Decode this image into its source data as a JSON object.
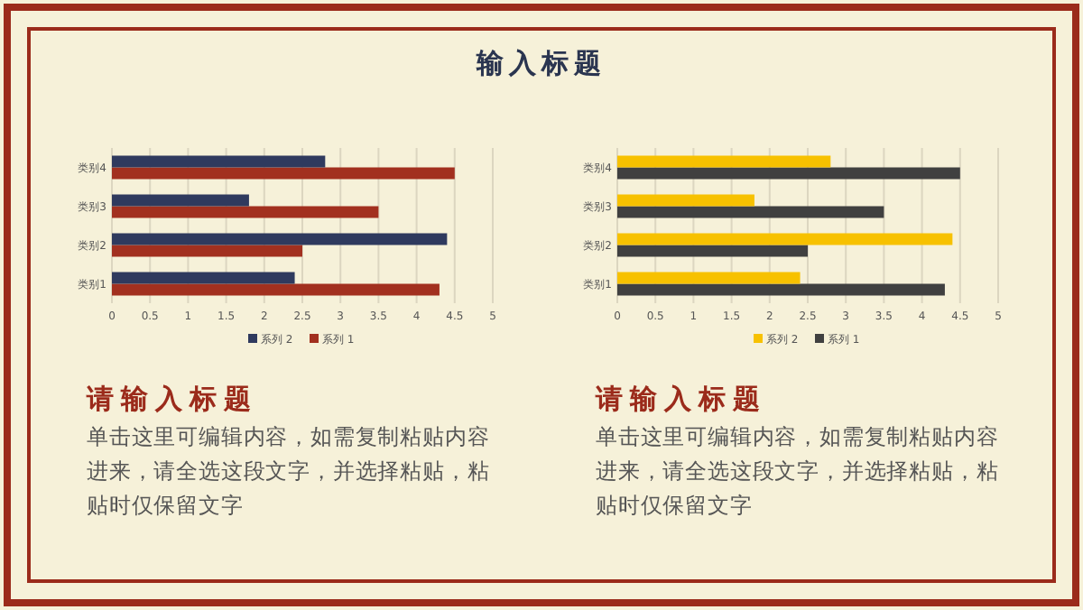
{
  "chart_data": [
    {
      "type": "other",
      "title": "输入标题"
    },
    {
      "type": "bar",
      "orientation": "horizontal",
      "categories": [
        "类别4",
        "类别3",
        "类别2",
        "类别1"
      ],
      "series": [
        {
          "name": "系列 1",
          "color": "#a2301f",
          "values": [
            4.5,
            3.5,
            2.5,
            4.3
          ]
        },
        {
          "name": "系列 2",
          "color": "#2f3a5e",
          "values": [
            2.8,
            1.8,
            4.4,
            2.4
          ]
        }
      ],
      "xlim": [
        0,
        5
      ],
      "xticks": [
        0,
        0.5,
        1,
        1.5,
        2,
        2.5,
        3,
        3.5,
        4,
        4.5,
        5
      ],
      "grid": "x",
      "legend": "bottom",
      "annotations": [
        "请输入标题",
        "单击这里可编辑内容，如需复制粘贴内容进来，请全选这段文字，并选择粘贴，粘贴时仅保留文字"
      ]
    },
    {
      "type": "bar",
      "orientation": "horizontal",
      "categories": [
        "类别4",
        "类别3",
        "类别2",
        "类别1"
      ],
      "series": [
        {
          "name": "系列 1",
          "color": "#404040",
          "values": [
            4.5,
            3.5,
            2.5,
            4.3
          ]
        },
        {
          "name": "系列 2",
          "color": "#f7c100",
          "values": [
            2.8,
            1.8,
            4.4,
            2.4
          ]
        }
      ],
      "xlim": [
        0,
        5
      ],
      "xticks": [
        0,
        0.5,
        1,
        1.5,
        2,
        2.5,
        3,
        3.5,
        4,
        4.5,
        5
      ],
      "grid": "x",
      "legend": "bottom",
      "annotations": [
        "请输入标题",
        "单击这里可编辑内容，如需复制粘贴内容进来，请全选这段文字，并选择粘贴，粘贴时仅保留文字"
      ]
    }
  ]
}
